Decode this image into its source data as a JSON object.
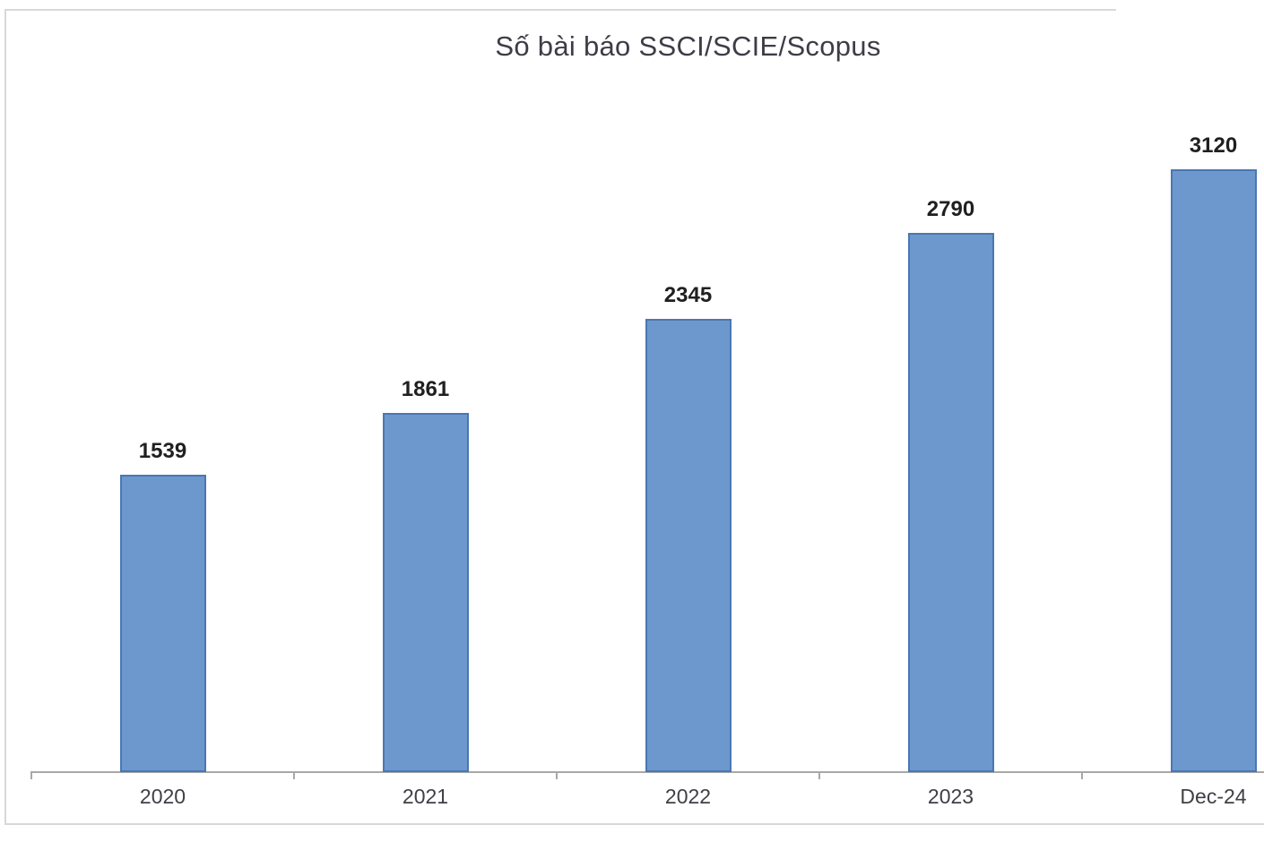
{
  "chart_data": {
    "type": "bar",
    "title": "Số bài báo SSCI/SCIE/Scopus",
    "categories": [
      "2020",
      "2021",
      "2022",
      "2023",
      "Dec-24"
    ],
    "values": [
      1539,
      1861,
      2345,
      2790,
      3120
    ],
    "xlabel": "",
    "ylabel": "",
    "ylim": [
      0,
      3200
    ],
    "grid": false,
    "legend": false,
    "value_labels": true,
    "series_name": ""
  },
  "colors": {
    "bar_fill": "#6D98CE",
    "bar_border": "#4A77B2",
    "axis_line": "#A8A8A8",
    "frame_border": "#D8D8DB",
    "title_color": "#3D3D47",
    "value_label_color": "#202020",
    "axis_label_color": "#3F3F45"
  }
}
